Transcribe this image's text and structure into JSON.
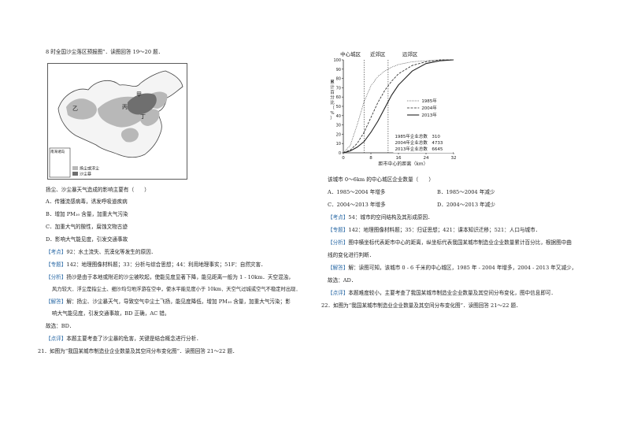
{
  "left": {
    "intro": "8 时全国沙尘落区预报图”．读图回答 19～20 题．",
    "map": {
      "labels": {
        "jia": "甲",
        "yi": "乙",
        "bing": "丙",
        "ding": "丁"
      },
      "inset": "南海诸岛",
      "legend": [
        "扬尘或浮尘",
        "沙尘暴"
      ]
    },
    "q19": {
      "stem": "扬尘、沙尘暴天气造成的影响主要有（　　）",
      "options": [
        "A．传播流感病毒，诱发呼吸道疾病",
        "B．增加 PM₁₀ 含量，加重大气污染",
        "C．加重大气的酸性，腐蚀文物古迹",
        "D．影响大气能见度，引发交通事故"
      ],
      "kaodian_tag": "【考点】",
      "kaodian": "92：水土流失、荒漠化等发生的原因．",
      "zhuanti_tag": "【专题】",
      "zhuanti": "142：地理图像材料题；33：分析与综合思想；44：利用地理事实；51F：自然灾害．",
      "fenxi_tag": "【分析】",
      "fenxi": [
        "扬沙是由于本地或附近的沙尘被吹起，使能见度显著下降，能见距离一般为 1 - 10km．天空混浊，",
        "风力较大．浮尘是指尘土、细沙均匀地浮游在空中，使水平能见度小于 10km．天空气过城或空气不稳定时出现．"
      ],
      "jieda_tag": "【解答】",
      "jieda": [
        "解：扬尘、沙尘暴天气，导致空气中尘土飞扬，能见度降低，增加 PM₁₀ 含量，加重大气污染；影",
        "响大气能见度，引发交通事故，BD 正确，AC 错。"
      ],
      "answer": "故选：BD．",
      "dianping_tag": "【点评】",
      "dianping": "本题主要考查了沙尘暴的危害，关键是结合概念进行分析．",
      "q21": "21．如图为“我国某城市制造业企业数量及其空间分布变化图”．读图回答 21～22 题．"
    }
  },
  "right": {
    "chart_data": {
      "type": "line",
      "title": "",
      "top_labels": [
        "中心城区",
        "近郊区",
        "远郊区"
      ],
      "xlabel": "距市中心的距离（km）",
      "ylabel": "累计百分比（%）",
      "x_ticks": [
        "0",
        "8",
        "16",
        "24",
        "32"
      ],
      "y_ticks": [
        "0",
        "10",
        "20",
        "30",
        "40",
        "50",
        "60",
        "70",
        "80",
        "90",
        "100"
      ],
      "xlim": [
        0,
        32
      ],
      "ylim": [
        0,
        100
      ],
      "boundaries_km": [
        6,
        13
      ],
      "series": [
        {
          "name": "1985年",
          "style": "dotted",
          "x": [
            0,
            2,
            4,
            6,
            8,
            10,
            12,
            14,
            16,
            20,
            24,
            28,
            32
          ],
          "y": [
            0,
            8,
            30,
            55,
            72,
            82,
            88,
            92,
            95,
            98,
            99,
            100,
            100
          ]
        },
        {
          "name": "2004年",
          "style": "dashed",
          "x": [
            0,
            2,
            4,
            6,
            8,
            10,
            12,
            14,
            16,
            20,
            24,
            28,
            32
          ],
          "y": [
            0,
            3,
            10,
            22,
            38,
            54,
            67,
            77,
            85,
            94,
            98,
            100,
            100
          ]
        },
        {
          "name": "2013年",
          "style": "solid",
          "x": [
            0,
            2,
            4,
            6,
            8,
            10,
            12,
            14,
            16,
            20,
            24,
            28,
            32
          ],
          "y": [
            0,
            2,
            6,
            12,
            22,
            34,
            48,
            62,
            73,
            88,
            96,
            99,
            100
          ]
        }
      ],
      "totals": [
        "1985年企业总数　310",
        "2004年企业总数　4733",
        "2013年企业总数　6645"
      ]
    },
    "q_stem": "该城市 0～6km 的中心城区企业数量（　　）",
    "options": [
      "A．1985～2004 年增多",
      "B．1985～2004 年减少",
      "C．2004～2013 年增多",
      "D．2004～2013 年减少"
    ],
    "kaodian_tag": "【考点】",
    "kaodian": "54：城市的空间结构及其形成原因．",
    "zhuanti_tag": "【专题】",
    "zhuanti": "142：地理图像材料题；35：归证思想；421：课本知识迁移；521：人口与城市．",
    "fenxi_tag": "【分析】",
    "fenxi": [
      "图中横坐标代表距市中心的距离，纵坐标代表我国某城市制造业企业数量累计百分比，根据图中曲",
      "线的变化进行判断．"
    ],
    "jieda_tag": "【解答】",
    "jieda": "解：读图可知，该城市 0 - 6 千米的中心城区，1985 年 - 2004 年增多，2004 - 2013 年又减少，",
    "answer": "故选：AD．",
    "dianping_tag": "【点评】",
    "dianping": "本题难度较小，主要考查了我国某城市制造业企业数量及其空间分布变化，图中信息即可．",
    "q22": "22．如图为“我国某城市制造业企业数量及其空间分布变化图”．读图回答 21～22 题．"
  }
}
